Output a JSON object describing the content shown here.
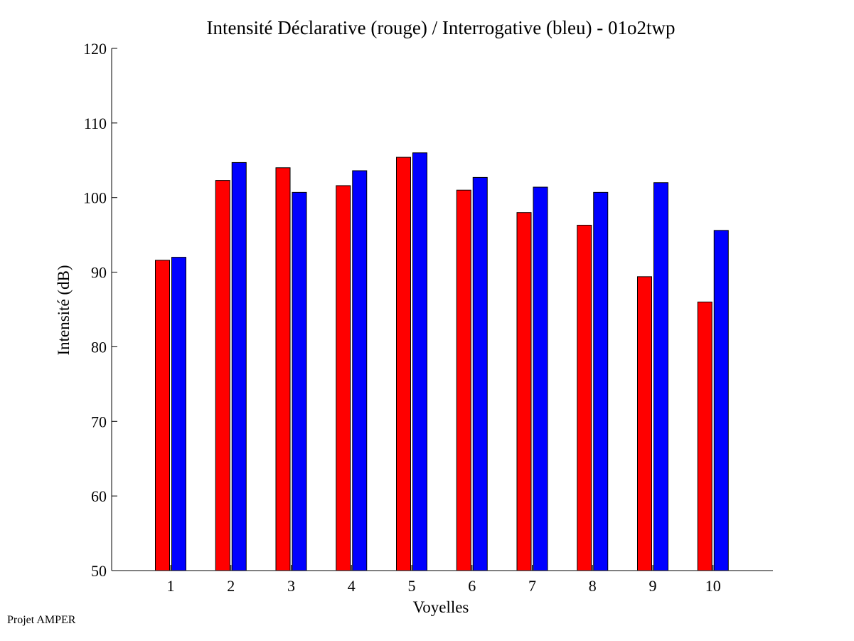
{
  "chart_data": {
    "type": "bar",
    "title": "Intensité Déclarative (rouge) / Interrogative (bleu) - 01o2twp",
    "xlabel": "Voyelles",
    "ylabel": "Intensité (dB)",
    "ylim": [
      50,
      120
    ],
    "yticks": [
      "50",
      "60",
      "70",
      "80",
      "90",
      "100",
      "110",
      "120"
    ],
    "categories": [
      "1",
      "2",
      "3",
      "4",
      "5",
      "6",
      "7",
      "8",
      "9",
      "10"
    ],
    "grid": false,
    "series": [
      {
        "color": "#ff0000",
        "values": [
          91.6,
          102.3,
          104.0,
          101.6,
          105.4,
          101.0,
          98.0,
          96.3,
          89.4,
          86.0
        ]
      },
      {
        "color": "#0000ff",
        "values": [
          92.0,
          104.7,
          100.7,
          103.6,
          106.0,
          102.7,
          101.4,
          100.7,
          102.0,
          95.6
        ]
      }
    ]
  },
  "footer": {
    "text": "Projet AMPER"
  }
}
